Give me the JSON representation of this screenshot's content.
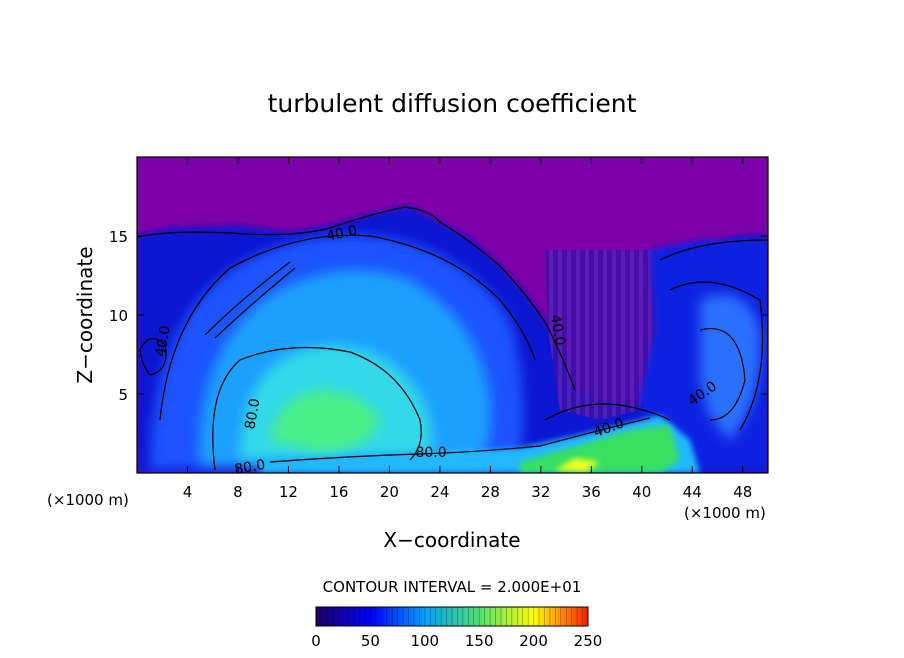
{
  "chart_data": {
    "type": "heatmap",
    "title": "turbulent diffusion coefficient",
    "xlabel": "X−coordinate",
    "ylabel": "Z−coordinate",
    "x_unit": "(×1000 m)",
    "y_unit": "(×1000 m)",
    "xlim": [
      0,
      50
    ],
    "ylim": [
      0,
      20
    ],
    "x_ticks": [
      4,
      8,
      12,
      16,
      20,
      24,
      28,
      32,
      36,
      40,
      44,
      48
    ],
    "y_ticks": [
      5,
      10,
      15
    ],
    "contour_interval_text": "CONTOUR INTERVAL = 2.000E+01",
    "contour_interval": 20,
    "contour_labels": [
      {
        "text": "40.0",
        "x": 16.3,
        "y": 14.9,
        "rotate": -12
      },
      {
        "text": "40.0",
        "x": 2.4,
        "y": 8.3,
        "rotate": -80
      },
      {
        "text": "80.0",
        "x": 9.5,
        "y": 3.7,
        "rotate": -80
      },
      {
        "text": "80.0",
        "x": 9.0,
        "y": 0.1,
        "rotate": -10
      },
      {
        "text": "80.0",
        "x": 23.3,
        "y": 1.0,
        "rotate": 0
      },
      {
        "text": "40.0",
        "x": 33.0,
        "y": 9.0,
        "rotate": 80
      },
      {
        "text": "40.0",
        "x": 37.5,
        "y": 2.6,
        "rotate": -20
      },
      {
        "text": "40.0",
        "x": 45.0,
        "y": 4.8,
        "rotate": -35
      }
    ],
    "colorbar": {
      "min": 0,
      "max": 250,
      "ticks": [
        0,
        50,
        100,
        150,
        200,
        250
      ],
      "colors": [
        "#1e0064",
        "#0000ff",
        "#00a0ff",
        "#50e070",
        "#ffff00",
        "#ff2000"
      ]
    },
    "background_value": 0,
    "colors": {
      "background": "#7c00a8",
      "plume": "#1a10a0"
    }
  }
}
